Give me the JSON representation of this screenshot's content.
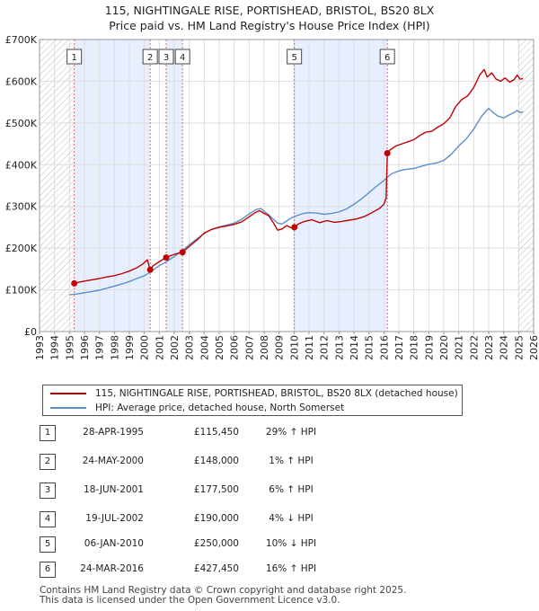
{
  "title": {
    "line1": "115, NIGHTINGALE RISE, PORTISHEAD, BRISTOL, BS20 8LX",
    "line2": "Price paid vs. HM Land Registry's House Price Index (HPI)"
  },
  "colors": {
    "price_line": "#c00000",
    "hpi_line": "#5b8fcc",
    "shade": "#e7efff",
    "hatch": "#bbbbbb",
    "grid": "#ffffff",
    "marker_line": "#e06666"
  },
  "chart_data": {
    "type": "line",
    "title": "",
    "xlabel": "",
    "ylabel": "",
    "xlim": [
      1993,
      2026
    ],
    "ylim": [
      0,
      700000
    ],
    "y_ticks": [
      0,
      100000,
      200000,
      300000,
      400000,
      500000,
      600000,
      700000
    ],
    "y_tick_labels": [
      "£0",
      "£100K",
      "£200K",
      "£300K",
      "£400K",
      "£500K",
      "£600K",
      "£700K"
    ],
    "x_ticks": [
      1993,
      1994,
      1995,
      1996,
      1997,
      1998,
      1999,
      2000,
      2001,
      2002,
      2003,
      2004,
      2005,
      2006,
      2007,
      2008,
      2009,
      2010,
      2011,
      2012,
      2013,
      2014,
      2015,
      2016,
      2017,
      2018,
      2019,
      2020,
      2021,
      2022,
      2023,
      2024,
      2025,
      2026
    ],
    "x_tick_labels": [
      "1993",
      "1994",
      "1995",
      "1996",
      "1997",
      "1998",
      "1999",
      "2000",
      "2001",
      "2002",
      "2003",
      "2004",
      "2005",
      "2006",
      "2007",
      "2008",
      "2009",
      "2010",
      "2011",
      "2012",
      "2013",
      "2014",
      "2015",
      "2016",
      "2017",
      "2018",
      "2019",
      "2020",
      "2021",
      "2022",
      "2023",
      "2024",
      "2025",
      "2026"
    ],
    "hatched_ranges": [
      [
        1993,
        1995.2
      ],
      [
        2024.92,
        2026
      ]
    ],
    "shaded_ranges": [
      [
        1995.32,
        2000.4
      ],
      [
        2001.46,
        2002.55
      ],
      [
        2010.02,
        2016.23
      ]
    ],
    "series": [
      {
        "name": "115, NIGHTINGALE RISE, PORTISHEAD, BRISTOL, BS20 8LX (detached house)",
        "x": [
          1995.32,
          1995.6,
          1996.0,
          1996.5,
          1997.0,
          1997.5,
          1998.0,
          1998.5,
          1999.0,
          1999.5,
          1999.9,
          2000.2,
          2000.39,
          2000.6,
          2000.9,
          2001.2,
          2001.46,
          2001.7,
          2002.0,
          2002.3,
          2002.55,
          2002.8,
          2003.2,
          2003.6,
          2004.0,
          2004.5,
          2005.0,
          2005.5,
          2006.0,
          2006.5,
          2007.0,
          2007.4,
          2007.7,
          2008.0,
          2008.3,
          2008.6,
          2008.9,
          2009.2,
          2009.5,
          2009.8,
          2010.02,
          2010.3,
          2010.7,
          2011.2,
          2011.7,
          2012.2,
          2012.7,
          2013.2,
          2013.7,
          2014.2,
          2014.7,
          2015.2,
          2015.7,
          2016.0,
          2016.15,
          2016.23,
          2016.4,
          2016.8,
          2017.2,
          2017.6,
          2018.0,
          2018.4,
          2018.8,
          2019.2,
          2019.6,
          2020.0,
          2020.4,
          2020.8,
          2021.2,
          2021.6,
          2022.0,
          2022.4,
          2022.7,
          2022.9,
          2023.2,
          2023.5,
          2023.8,
          2024.1,
          2024.4,
          2024.7,
          2024.9,
          2025.1,
          2025.3
        ],
        "values": [
          115450,
          118000,
          121000,
          124000,
          127000,
          131000,
          134000,
          139000,
          145000,
          153000,
          162000,
          172000,
          148000,
          158000,
          165000,
          172000,
          177500,
          181000,
          185000,
          188000,
          190000,
          198000,
          210000,
          222000,
          236000,
          245000,
          250000,
          253000,
          257000,
          263000,
          275000,
          285000,
          290000,
          283000,
          278000,
          262000,
          243000,
          246000,
          254000,
          249000,
          250000,
          258000,
          264000,
          268000,
          261000,
          266000,
          262000,
          264000,
          267000,
          270000,
          276000,
          285000,
          295000,
          305000,
          320000,
          427450,
          435000,
          445000,
          450000,
          455000,
          460000,
          470000,
          478000,
          480000,
          490000,
          498000,
          512000,
          540000,
          556000,
          565000,
          585000,
          615000,
          628000,
          610000,
          620000,
          605000,
          600000,
          608000,
          598000,
          604000,
          615000,
          605000,
          606000
        ]
      },
      {
        "name": "HPI: Average price, detached house, North Somerset",
        "x": [
          1995.0,
          1995.5,
          1996.0,
          1996.5,
          1997.0,
          1997.5,
          1998.0,
          1998.5,
          1999.0,
          1999.5,
          2000.0,
          2000.5,
          2001.0,
          2001.5,
          2002.0,
          2002.5,
          2003.0,
          2003.5,
          2004.0,
          2004.5,
          2005.0,
          2005.5,
          2006.0,
          2006.5,
          2007.0,
          2007.5,
          2007.8,
          2008.0,
          2008.3,
          2008.6,
          2008.9,
          2009.2,
          2009.5,
          2009.8,
          2010.2,
          2010.6,
          2011.0,
          2011.5,
          2012.0,
          2012.5,
          2013.0,
          2013.5,
          2014.0,
          2014.5,
          2015.0,
          2015.5,
          2016.0,
          2016.5,
          2017.0,
          2017.5,
          2018.0,
          2018.5,
          2019.0,
          2019.5,
          2020.0,
          2020.5,
          2021.0,
          2021.5,
          2022.0,
          2022.5,
          2022.8,
          2023.0,
          2023.3,
          2023.6,
          2024.0,
          2024.4,
          2024.7,
          2024.9,
          2025.1,
          2025.3
        ],
        "values": [
          88000,
          90000,
          93000,
          96000,
          99000,
          104000,
          109000,
          114000,
          120000,
          127000,
          134000,
          145000,
          158000,
          168000,
          180000,
          193000,
          208000,
          222000,
          235000,
          245000,
          251000,
          255000,
          260000,
          269000,
          282000,
          293000,
          295000,
          288000,
          280000,
          270000,
          260000,
          258000,
          265000,
          272000,
          278000,
          283000,
          285000,
          284000,
          281000,
          283000,
          287000,
          294000,
          305000,
          318000,
          333000,
          348000,
          362000,
          378000,
          385000,
          389000,
          391000,
          396000,
          401000,
          404000,
          410000,
          425000,
          445000,
          462000,
          485000,
          515000,
          528000,
          535000,
          525000,
          517000,
          512000,
          520000,
          525000,
          530000,
          525000,
          527000
        ]
      }
    ],
    "transactions": [
      {
        "num": "1",
        "x": 1995.32,
        "price": 115450
      },
      {
        "num": "2",
        "x": 2000.39,
        "price": 148000
      },
      {
        "num": "3",
        "x": 2001.46,
        "price": 177500
      },
      {
        "num": "4",
        "x": 2002.55,
        "price": 190000
      },
      {
        "num": "5",
        "x": 2010.02,
        "price": 250000
      },
      {
        "num": "6",
        "x": 2016.23,
        "price": 427450
      }
    ]
  },
  "legend": {
    "price_label": "115, NIGHTINGALE RISE, PORTISHEAD, BRISTOL, BS20 8LX (detached house)",
    "hpi_label": "HPI: Average price, detached house, North Somerset"
  },
  "table": [
    {
      "num": "1",
      "date": "28-APR-1995",
      "price": "£115,450",
      "hpi": "29% ↑ HPI"
    },
    {
      "num": "2",
      "date": "24-MAY-2000",
      "price": "£148,000",
      "hpi": "1% ↑ HPI"
    },
    {
      "num": "3",
      "date": "18-JUN-2001",
      "price": "£177,500",
      "hpi": "6% ↑ HPI"
    },
    {
      "num": "4",
      "date": "19-JUL-2002",
      "price": "£190,000",
      "hpi": "4% ↓ HPI"
    },
    {
      "num": "5",
      "date": "06-JAN-2010",
      "price": "£250,000",
      "hpi": "10% ↓ HPI"
    },
    {
      "num": "6",
      "date": "24-MAR-2016",
      "price": "£427,450",
      "hpi": "16% ↑ HPI"
    }
  ],
  "footer": {
    "line1": "Contains HM Land Registry data © Crown copyright and database right 2025.",
    "line2": "This data is licensed under the Open Government Licence v3.0."
  }
}
